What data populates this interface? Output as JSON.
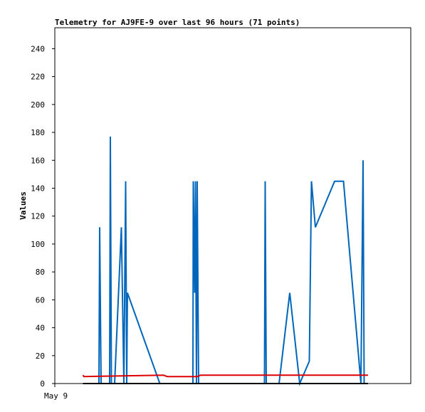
{
  "chart_data": {
    "type": "line",
    "title": "Telemetry for AJ9FE-9 over last 96 hours (71 points)",
    "xlabel": "",
    "ylabel": "Values",
    "x_tick_labels": [
      {
        "x": 0,
        "label": "May 9"
      }
    ],
    "xlim": [
      0,
      100
    ],
    "ylim": [
      0,
      255
    ],
    "y_ticks": [
      0,
      20,
      40,
      60,
      80,
      100,
      120,
      140,
      160,
      180,
      200,
      220,
      240
    ],
    "grid": false,
    "series": [
      {
        "color": "#0066bb",
        "points": [
          [
            11.4,
            0
          ],
          [
            12.4,
            0
          ],
          [
            12.6,
            112
          ],
          [
            13.0,
            0
          ],
          [
            15.4,
            0
          ],
          [
            15.6,
            177
          ],
          [
            15.9,
            0
          ],
          [
            16.8,
            0
          ],
          [
            18.7,
            112
          ],
          [
            19.4,
            0
          ],
          [
            19.9,
            145
          ],
          [
            20.2,
            0
          ],
          [
            20.4,
            65
          ],
          [
            29.5,
            0
          ],
          [
            38.8,
            0
          ],
          [
            38.9,
            145
          ],
          [
            39.3,
            65
          ],
          [
            39.5,
            145
          ],
          [
            39.8,
            0
          ],
          [
            40.0,
            145
          ],
          [
            40.4,
            0
          ],
          [
            58.9,
            0
          ],
          [
            59.1,
            145
          ],
          [
            59.4,
            0
          ],
          [
            63.0,
            0
          ],
          [
            66.0,
            65
          ],
          [
            68.8,
            0
          ],
          [
            71.5,
            16
          ],
          [
            72.1,
            145
          ],
          [
            73.2,
            112
          ],
          [
            78.6,
            145
          ],
          [
            81.1,
            145
          ],
          [
            86.0,
            0
          ],
          [
            86.6,
            160
          ],
          [
            86.9,
            0
          ]
        ]
      },
      {
        "color": "#dd0000",
        "points": [
          [
            7.9,
            6
          ],
          [
            8.2,
            5
          ],
          [
            30.5,
            6
          ],
          [
            31.6,
            5
          ],
          [
            40.0,
            5
          ],
          [
            41.0,
            6
          ],
          [
            88.0,
            6
          ]
        ]
      },
      {
        "color": "#000000",
        "points": [
          [
            7.9,
            0
          ],
          [
            88.0,
            0
          ]
        ]
      }
    ]
  }
}
